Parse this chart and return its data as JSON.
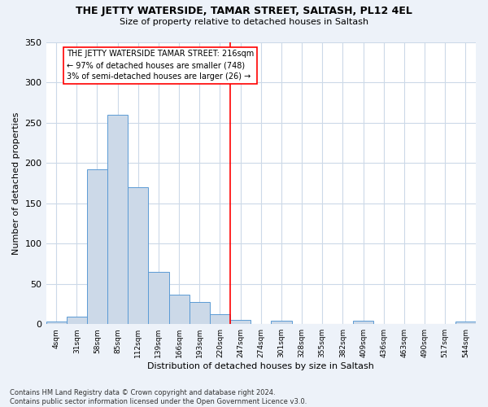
{
  "title": "THE JETTY WATERSIDE, TAMAR STREET, SALTASH, PL12 4EL",
  "subtitle": "Size of property relative to detached houses in Saltash",
  "xlabel": "Distribution of detached houses by size in Saltash",
  "ylabel": "Number of detached properties",
  "footer": "Contains HM Land Registry data © Crown copyright and database right 2024.\nContains public sector information licensed under the Open Government Licence v3.0.",
  "bar_labels": [
    "4sqm",
    "31sqm",
    "58sqm",
    "85sqm",
    "112sqm",
    "139sqm",
    "166sqm",
    "193sqm",
    "220sqm",
    "247sqm",
    "274sqm",
    "301sqm",
    "328sqm",
    "355sqm",
    "382sqm",
    "409sqm",
    "436sqm",
    "463sqm",
    "490sqm",
    "517sqm",
    "544sqm"
  ],
  "bar_values": [
    3,
    9,
    192,
    260,
    170,
    65,
    37,
    27,
    12,
    5,
    0,
    4,
    0,
    0,
    0,
    4,
    0,
    0,
    0,
    0,
    3
  ],
  "bar_color": "#ccd9e8",
  "bar_edge_color": "#5b9bd5",
  "vline_x": 8.5,
  "vline_color": "red",
  "annotation_text": "THE JETTY WATERSIDE TAMAR STREET: 216sqm\n← 97% of detached houses are smaller (748)\n3% of semi-detached houses are larger (26) →",
  "annotation_box_color": "white",
  "annotation_box_edge": "red",
  "ylim": [
    0,
    350
  ],
  "yticks": [
    0,
    50,
    100,
    150,
    200,
    250,
    300,
    350
  ],
  "bg_color": "#edf2f9",
  "plot_bg_color": "white",
  "grid_color": "#ccd9e8"
}
